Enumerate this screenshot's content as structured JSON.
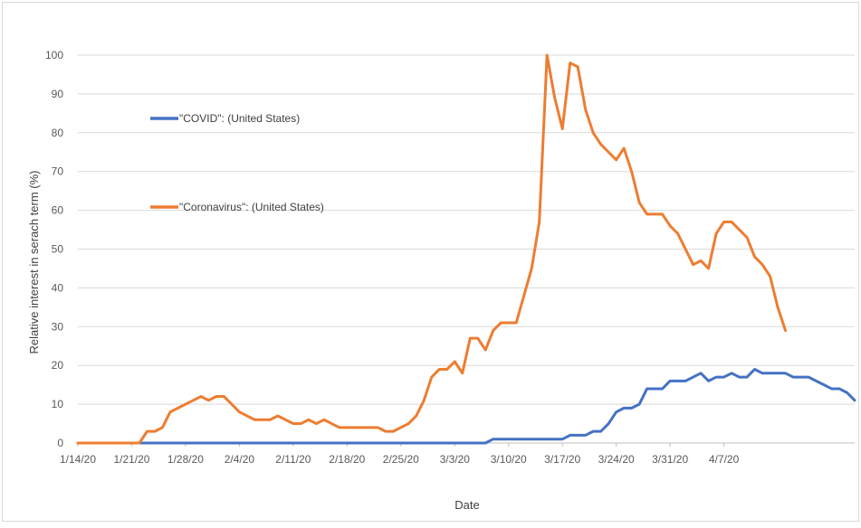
{
  "chart_data": {
    "type": "line",
    "title": "",
    "xlabel": "Date",
    "ylabel": "Relative interest  in serach term  (%)",
    "ylim": [
      0,
      100
    ],
    "y_ticks": [
      0,
      10,
      20,
      30,
      40,
      50,
      60,
      70,
      80,
      90,
      100
    ],
    "x_tick_labels": [
      "1/14/20",
      "1/21/20",
      "1/28/20",
      "2/4/20",
      "2/11/20",
      "2/18/20",
      "2/25/20",
      "3/3/20",
      "3/10/20",
      "3/17/20",
      "3/24/20",
      "3/31/20",
      "4/7/20"
    ],
    "x_start": "1/14/20",
    "x_end": "4/11/20",
    "grid": "horizontal",
    "legend_placement": "upper-left, inside plot",
    "series": [
      {
        "name": "\"COVID\": (United States)",
        "color": "#4472C4",
        "values": [
          0,
          0,
          0,
          0,
          0,
          0,
          0,
          0,
          0,
          0,
          0,
          0,
          0,
          0,
          0,
          0,
          0,
          0,
          0,
          0,
          0,
          0,
          0,
          0,
          0,
          0,
          0,
          0,
          0,
          0,
          0,
          0,
          0,
          0,
          0,
          0,
          0,
          0,
          0,
          0,
          0,
          0,
          0,
          0,
          0,
          0,
          0,
          0,
          0,
          0,
          0,
          0,
          0,
          0,
          1,
          1,
          1,
          1,
          1,
          1,
          1,
          1,
          1,
          1,
          2,
          2,
          2,
          3,
          3,
          5,
          8,
          9,
          9,
          10,
          14,
          14,
          14,
          16,
          16,
          16,
          17,
          18,
          16,
          17,
          17,
          18,
          17,
          17,
          19,
          18,
          18,
          18,
          18,
          17,
          17,
          17,
          16,
          15,
          14,
          14,
          13,
          11
        ]
      },
      {
        "name": "\"Coronavirus\": (United States)",
        "color": "#ED7D31",
        "values": [
          0,
          0,
          0,
          0,
          0,
          0,
          0,
          0,
          0,
          3,
          3,
          4,
          8,
          9,
          10,
          11,
          12,
          11,
          12,
          12,
          10,
          8,
          7,
          6,
          6,
          6,
          7,
          6,
          5,
          5,
          6,
          5,
          6,
          5,
          4,
          4,
          4,
          4,
          4,
          4,
          3,
          3,
          4,
          5,
          7,
          11,
          17,
          19,
          19,
          21,
          18,
          27,
          27,
          24,
          29,
          31,
          31,
          31,
          38,
          45,
          57,
          100,
          89,
          81,
          98,
          97,
          86,
          80,
          77,
          75,
          73,
          76,
          70,
          62,
          59,
          59,
          59,
          56,
          54,
          50,
          46,
          47,
          45,
          54,
          57,
          57,
          55,
          53,
          48,
          46,
          43,
          35,
          29
        ]
      }
    ]
  }
}
